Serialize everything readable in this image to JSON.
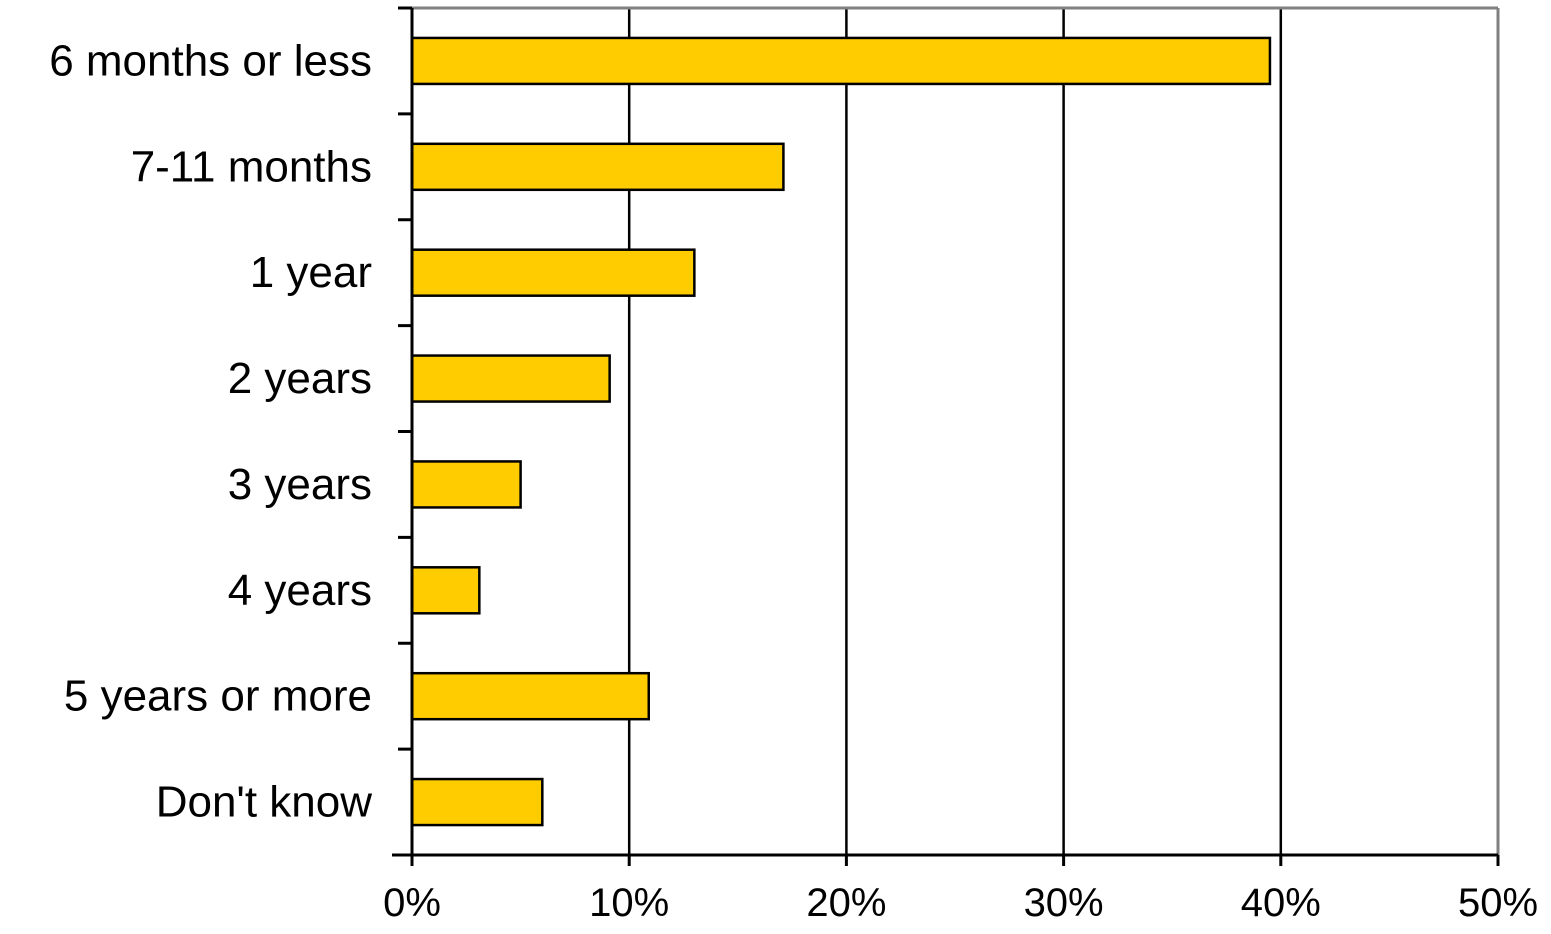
{
  "chart_data": {
    "type": "bar",
    "orientation": "horizontal",
    "categories": [
      "6 months or less",
      "7-11 months",
      "1 year",
      "2 years",
      "3 years",
      "4 years",
      "5 years or more",
      "Don't know"
    ],
    "values": [
      39.5,
      17.1,
      13.0,
      9.1,
      5.0,
      3.1,
      10.9,
      6.0
    ],
    "xlim": [
      0,
      50
    ],
    "xticks": [
      0,
      10,
      20,
      30,
      40,
      50
    ],
    "xtick_labels": [
      "0%",
      "10%",
      "20%",
      "30%",
      "40%",
      "50%"
    ],
    "value_unit": "%",
    "title": "",
    "xlabel": "",
    "ylabel": "",
    "grid": "vertical major gridlines",
    "legend": "none",
    "colors": {
      "bar_fill": "#FFCC00",
      "bar_stroke": "#000000",
      "gridline": "#000000",
      "plot_border": "#808080",
      "background": "#FFFFFF"
    }
  }
}
